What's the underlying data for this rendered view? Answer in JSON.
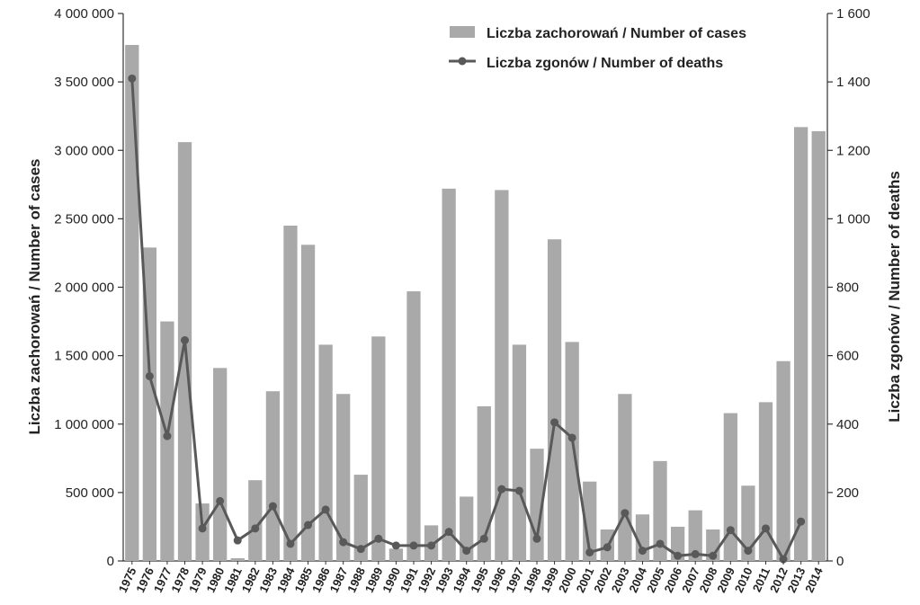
{
  "chart_data": {
    "type": "bar",
    "categories": [
      "1975",
      "1976",
      "1977",
      "1978",
      "1979",
      "1980",
      "1981",
      "1982",
      "1983",
      "1984",
      "1985",
      "1986",
      "1987",
      "1988",
      "1989",
      "1990",
      "1991",
      "1992",
      "1993",
      "1994",
      "1995",
      "1996",
      "1997",
      "1998",
      "1999",
      "2000",
      "2001",
      "2002",
      "2003",
      "2004",
      "2005",
      "2006",
      "2007",
      "2008",
      "2009",
      "2010",
      "2011",
      "2012",
      "2013",
      "2014"
    ],
    "series": [
      {
        "name": "Liczba zachorowań / Number of cases",
        "kind": "bar",
        "axis": "left",
        "color": "#a9a9a9",
        "values": [
          3770000,
          2290000,
          1750000,
          3060000,
          420000,
          1410000,
          20000,
          590000,
          1240000,
          2450000,
          2310000,
          1580000,
          1220000,
          630000,
          1640000,
          90000,
          1970000,
          260000,
          2720000,
          470000,
          1130000,
          2710000,
          1580000,
          820000,
          2350000,
          1600000,
          580000,
          230000,
          1220000,
          340000,
          730000,
          250000,
          370000,
          230000,
          1080000,
          550000,
          1160000,
          1460000,
          3170000,
          3140000
        ]
      },
      {
        "name": "Liczba zgonów / Number of deaths",
        "kind": "line",
        "axis": "right",
        "color": "#595959",
        "values": [
          1410,
          540,
          365,
          645,
          95,
          175,
          60,
          95,
          160,
          50,
          105,
          150,
          55,
          35,
          65,
          45,
          45,
          45,
          85,
          30,
          65,
          210,
          205,
          65,
          405,
          360,
          25,
          40,
          140,
          30,
          50,
          15,
          20,
          15,
          90,
          30,
          95,
          5,
          115,
          null
        ]
      }
    ],
    "ylabel_left": "Liczba zachorowań  /  Number of cases",
    "ylabel_right": "Liczba zgonów  /  Number of deaths",
    "ylim_left": [
      0,
      4000000
    ],
    "ylim_right": [
      0,
      1600
    ],
    "yticks_left": [
      "0",
      "500 000",
      "1 000 000",
      "1 500 000",
      "2 000 000",
      "2 500 000",
      "3 000 000",
      "3 500 000",
      "4 000 000"
    ],
    "yticks_right": [
      "0",
      "200",
      "400",
      "600",
      "800",
      "1 000",
      "1 200",
      "1 400",
      "1 600"
    ],
    "grid": false,
    "legend_position": "top-right"
  }
}
